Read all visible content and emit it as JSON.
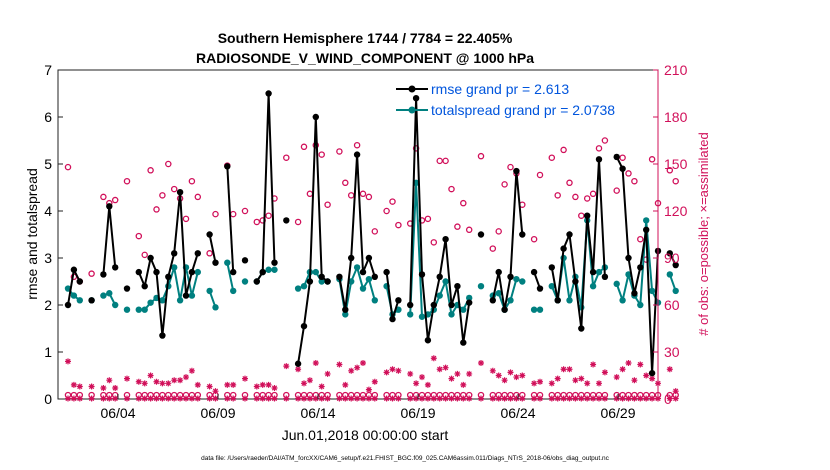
{
  "chart_data": {
    "type": "line",
    "title": "Southern Hemisphere 1744 / 7784 = 22.405%",
    "subtitle": "RADIOSONDE_V_WIND_COMPONENT @ 1000 hPa",
    "xlabel": "Jun.01,2018 00:00:00 start",
    "ylabel": "rmse and totalspread",
    "ylabel_right": "# of obs: o=possible; ×=assimilated",
    "footer": "data file: /Users/raeder/DAI/ATM_forcXX/CAM6_setup/f.e21.FHIST_BGC.f09_025.CAM6assim.011/Diags_NTrS_2018-06/obs_diag_output.nc",
    "xlim": [
      0.5,
      30.5
    ],
    "ylim": [
      0,
      7
    ],
    "ylim_right": [
      0,
      210
    ],
    "x_ticks": [
      3.5,
      8.5,
      13.5,
      18.5,
      23.5,
      28.5
    ],
    "x_tick_labels": [
      "06/04",
      "06/09",
      "06/14",
      "06/19",
      "06/24",
      "06/29"
    ],
    "y_ticks": [
      0,
      1,
      2,
      3,
      4,
      5,
      6,
      7
    ],
    "y_ticks_right": [
      0,
      30,
      60,
      90,
      120,
      150,
      180,
      210
    ],
    "grid": false,
    "legend_position": "top-right",
    "colors": {
      "rmse": "#000000",
      "spread": "#008080",
      "obs": "#d1105a",
      "legend_text": "#0055dd"
    },
    "series": [
      {
        "name": "rmse grand pr = 2.613",
        "values": [
          2.0,
          2.75,
          2.5,
          null,
          2.1,
          null,
          2.65,
          4.1,
          2.8,
          null,
          2.35,
          null,
          2.7,
          2.4,
          3.0,
          2.7,
          1.35,
          2.6,
          3.1,
          4.4,
          2.2,
          2.7,
          3.1,
          null,
          3.5,
          2.9,
          null,
          4.95,
          2.7,
          null,
          2.95,
          null,
          2.5,
          2.7,
          6.5,
          2.9,
          null,
          3.8,
          null,
          0.75,
          1.55,
          2.5,
          6.0,
          2.6,
          2.5,
          null,
          2.6,
          1.9,
          3.0,
          5.2,
          2.7,
          3.0,
          2.6,
          null,
          2.7,
          1.7,
          2.1,
          null,
          2.0,
          6.4,
          2.65,
          1.25,
          2.0,
          2.6,
          3.4,
          2.0,
          2.4,
          1.2,
          2.05,
          null,
          3.5,
          null,
          2.1,
          2.7,
          1.9,
          2.6,
          4.85,
          3.5,
          null,
          2.7,
          2.35,
          null,
          2.8,
          2.1,
          3.2,
          3.5,
          2.5,
          1.5,
          3.9,
          2.7,
          5.1,
          2.6,
          null,
          5.15,
          4.9,
          3.0,
          2.25,
          2.8,
          3.6,
          0.55,
          3.15,
          null,
          3.1,
          2.85
        ],
        "assimilated": [
          24,
          9,
          8,
          null,
          8,
          null,
          7,
          12,
          7,
          null,
          13,
          null,
          11,
          10,
          15,
          11,
          10,
          10,
          12,
          12,
          14,
          18,
          9,
          null,
          8,
          5,
          null,
          9,
          9,
          null,
          13,
          null,
          8,
          9,
          9,
          7,
          null,
          21,
          null,
          19,
          10,
          12,
          23,
          8,
          16,
          null,
          22,
          9,
          18,
          20,
          23,
          6,
          11,
          null,
          17,
          19,
          18,
          null,
          16,
          10,
          14,
          9,
          26,
          19,
          20,
          13,
          16,
          9,
          16,
          null,
          23,
          null,
          18,
          15,
          12,
          17,
          14,
          15,
          null,
          10,
          11,
          null,
          10,
          13,
          19,
          19,
          12,
          13,
          10,
          22,
          10,
          17,
          null,
          14,
          19,
          23,
          12,
          22,
          15,
          13,
          10,
          null,
          19,
          5
        ],
        "possible": [
          148,
          78,
          75,
          null,
          80,
          null,
          129,
          125,
          127,
          null,
          139,
          null,
          104,
          92,
          146,
          121,
          130,
          150,
          134,
          128,
          115,
          139,
          129,
          null,
          93,
          118,
          null,
          149,
          118,
          null,
          120,
          null,
          113,
          114,
          117,
          128,
          null,
          154,
          null,
          113,
          161,
          131,
          162,
          156,
          124,
          null,
          158,
          138,
          130,
          162,
          131,
          129,
          107,
          null,
          120,
          126,
          111,
          null,
          112,
          160,
          114,
          115,
          100,
          152,
          152,
          134,
          110,
          125,
          108,
          null,
          155,
          null,
          96,
          107,
          137,
          148,
          144,
          124,
          null,
          102,
          143,
          null,
          154,
          130,
          159,
          138,
          129,
          117,
          128,
          131,
          160,
          165,
          null,
          133,
          154,
          144,
          139,
          102,
          89,
          153,
          125,
          null,
          146,
          139
        ]
      },
      {
        "name": "totalspread grand pr = 2.0738",
        "values": [
          2.35,
          2.2,
          2.1,
          null,
          2.1,
          null,
          2.2,
          2.25,
          2.0,
          null,
          1.9,
          null,
          1.9,
          1.9,
          2.05,
          2.15,
          2.1,
          2.4,
          2.8,
          2.1,
          2.8,
          2.2,
          2.7,
          null,
          2.3,
          1.95,
          null,
          2.9,
          2.3,
          null,
          2.5,
          null,
          2.5,
          2.7,
          2.75,
          2.75,
          null,
          null,
          null,
          2.35,
          2.4,
          2.7,
          2.7,
          2.5,
          2.5,
          null,
          2.55,
          1.8,
          2.5,
          2.8,
          2.35,
          2.55,
          2.1,
          null,
          2.4,
          1.8,
          1.9,
          null,
          1.8,
          4.6,
          1.75,
          1.8,
          1.9,
          2.2,
          2.5,
          1.8,
          2.0,
          1.9,
          2.15,
          null,
          2.4,
          null,
          2.2,
          2.25,
          1.9,
          2.1,
          2.55,
          2.5,
          null,
          1.9,
          1.9,
          null,
          2.4,
          2.1,
          3.0,
          2.1,
          2.6,
          1.95,
          3.8,
          2.4,
          2.7,
          2.8,
          null,
          2.45,
          2.1,
          2.65,
          2.2,
          2.0,
          3.8,
          2.3,
          2.05,
          null,
          2.65,
          2.3
        ]
      }
    ]
  }
}
